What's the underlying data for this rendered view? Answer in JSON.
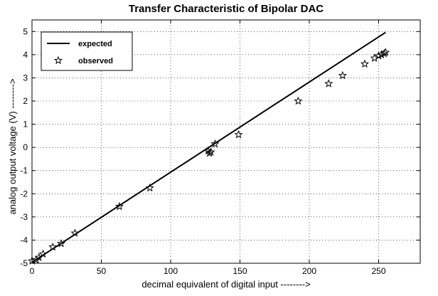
{
  "chart_data": {
    "type": "line",
    "title": "Transfer Characteristic of Bipolar DAC",
    "xlabel": "decimal equivalent of digital input -------->",
    "ylabel": "analog output voltage (V) -------->",
    "xlim": [
      0,
      280
    ],
    "ylim": [
      -5,
      5.5
    ],
    "xticks": [
      0,
      50,
      100,
      150,
      200,
      250
    ],
    "xtick_labels": [
      "0",
      "50",
      "100",
      "150",
      "200",
      "250"
    ],
    "yticks": [
      -5,
      -4,
      -3,
      -2,
      -1,
      0,
      1,
      2,
      3,
      4,
      5
    ],
    "ytick_labels": [
      "-5",
      "-4",
      "-3",
      "-2",
      "-1",
      "0",
      "1",
      "2",
      "3",
      "4",
      "5"
    ],
    "grid": true,
    "legend_position": "top-left",
    "series": [
      {
        "name": "expected",
        "style": "line",
        "color": "#000000",
        "x": [
          0,
          255
        ],
        "y": [
          -4.96,
          4.96
        ]
      },
      {
        "name": "observed",
        "style": "marker",
        "marker": "star",
        "color": "#000000",
        "x": [
          0,
          3,
          5,
          8,
          15,
          21,
          31,
          63,
          85,
          127,
          128,
          129,
          132,
          149,
          192,
          214,
          224,
          240,
          247,
          250,
          252,
          254,
          255
        ],
        "y": [
          -4.9,
          -4.85,
          -4.75,
          -4.6,
          -4.3,
          -4.15,
          -3.7,
          -2.55,
          -1.75,
          -0.15,
          -0.25,
          -0.2,
          0.15,
          0.55,
          2.0,
          2.75,
          3.1,
          3.6,
          3.85,
          3.95,
          4.0,
          4.05,
          4.1
        ]
      }
    ]
  }
}
